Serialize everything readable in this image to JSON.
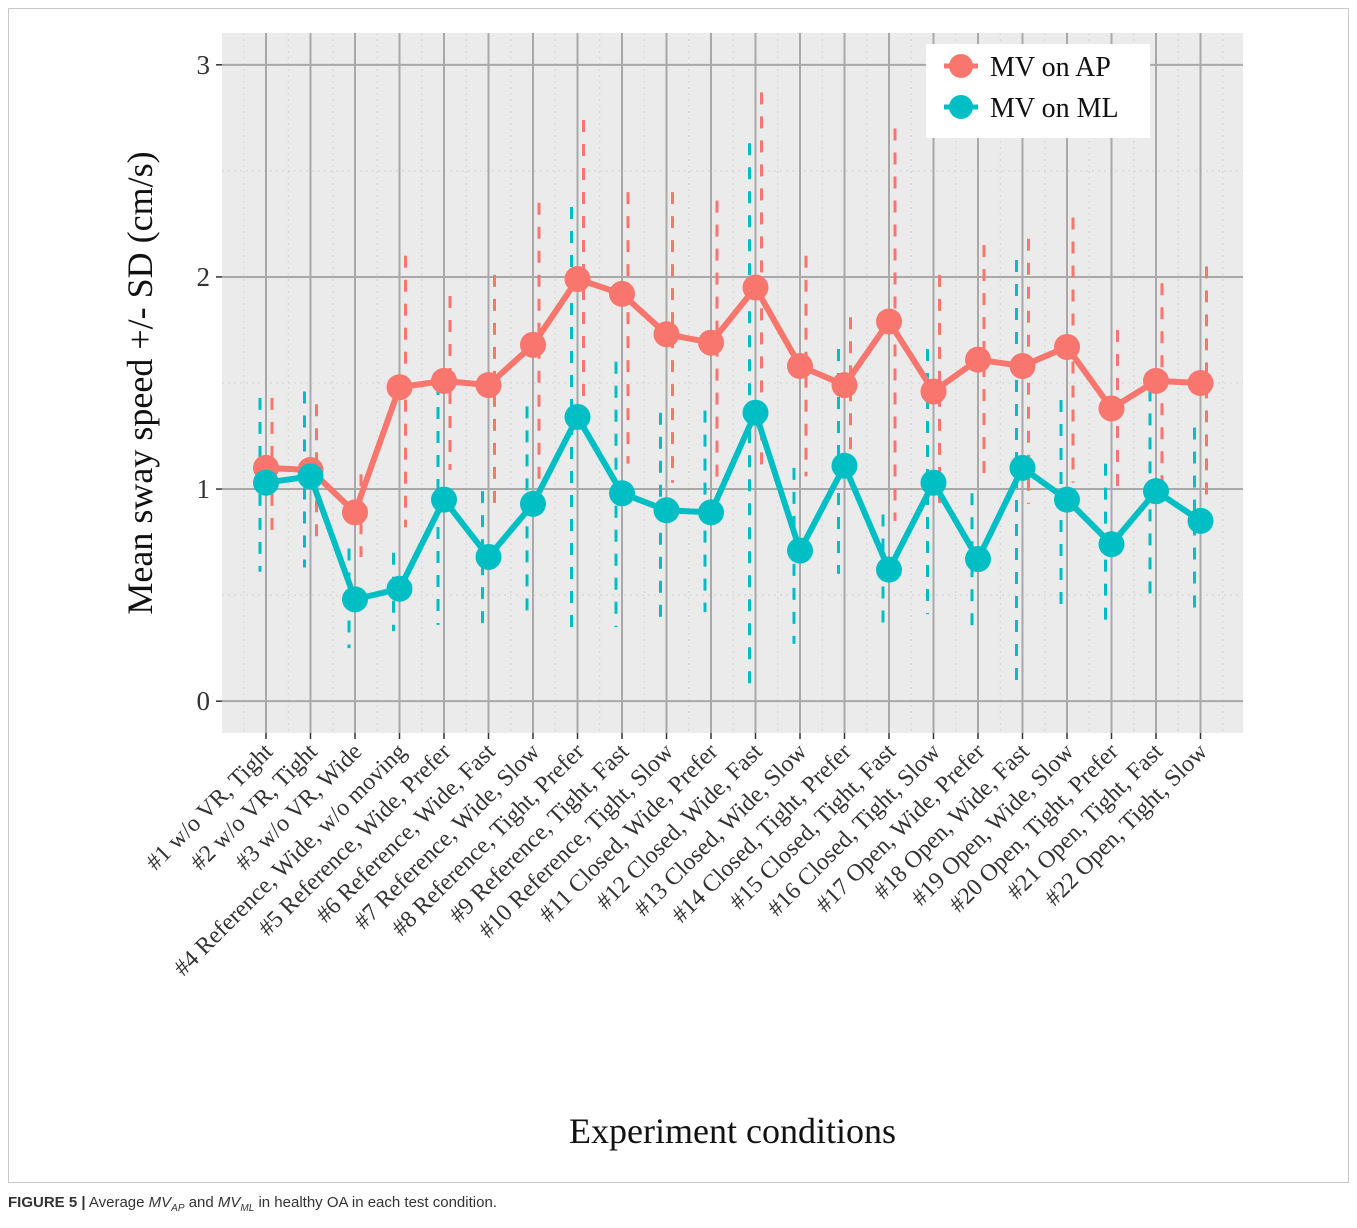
{
  "caption": {
    "label": "FIGURE 5 |",
    "text_before": "Average",
    "mv1": "MV",
    "sub1": "AP",
    "and_word": "and",
    "mv2": "MV",
    "sub2": "ML",
    "text_after": "in healthy OA in each test condition."
  },
  "colors": {
    "panel_bg": "#ebebeb",
    "grid_major": "#a9a9a9",
    "grid_minor": "#d3d3d3",
    "ap": "#f8766d",
    "ml": "#00bfc4"
  },
  "chart_data": {
    "type": "line",
    "xlabel": "Experiment conditions",
    "ylabel": "Mean sway speed +/- SD (cm/s)",
    "ylim": [
      -0.15,
      3.15
    ],
    "y_ticks": [
      0,
      1,
      2,
      3
    ],
    "y_tick_labels": [
      "0",
      "1",
      "2",
      "3"
    ],
    "grid": true,
    "legend_position": "top-right",
    "categories": [
      "#1 w/o VR, Tight",
      "#2 w/o VR, Tight",
      "#3 w/o VR, Wide",
      "#4 Reference, Wide, w/o moving",
      "#5 Reference, Wide, Prefer",
      "#6 Reference, Wide, Fast",
      "#7 Reference, Wide, Slow",
      "#8 Reference, Tight, Prefer",
      "#9 Reference, Tight, Fast",
      "#10 Reference, Tight, Slow",
      "#11 Closed, Wide, Prefer",
      "#12 Closed, Wide, Fast",
      "#13 Closed, Wide, Slow",
      "#14 Closed, Tight, Prefer",
      "#15 Closed, Tight, Fast",
      "#16 Closed, Tight, Slow",
      "#17 Open, Wide, Prefer",
      "#18 Open, Wide, Fast",
      "#19 Open, Wide, Slow",
      "#20 Open, Tight, Prefer",
      "#21 Open, Tight, Fast",
      "#22 Open, Tight, Slow"
    ],
    "series": [
      {
        "name": "MV on AP",
        "color": "#f8766d",
        "values": [
          1.1,
          1.09,
          0.89,
          1.48,
          1.51,
          1.49,
          1.68,
          1.99,
          1.92,
          1.73,
          1.69,
          1.95,
          1.58,
          1.49,
          1.79,
          1.46,
          1.61,
          1.58,
          1.67,
          1.38,
          1.51,
          1.5
        ],
        "sd_low": [
          0.77,
          0.73,
          0.68,
          0.82,
          1.09,
          0.93,
          0.96,
          1.27,
          1.12,
          1.03,
          1.04,
          1.06,
          1.06,
          1.15,
          0.85,
          0.91,
          1.06,
          0.93,
          1.03,
          1.01,
          1.04,
          0.93
        ],
        "sd_high": [
          1.43,
          1.4,
          1.07,
          2.1,
          1.91,
          2.01,
          2.35,
          2.74,
          2.4,
          2.4,
          2.36,
          2.87,
          2.1,
          1.81,
          2.7,
          2.01,
          2.15,
          2.18,
          2.28,
          1.75,
          1.97,
          2.05
        ]
      },
      {
        "name": "MV on ML",
        "color": "#00bfc4",
        "values": [
          1.03,
          1.06,
          0.48,
          0.53,
          0.95,
          0.68,
          0.93,
          1.34,
          0.98,
          0.9,
          0.89,
          1.36,
          0.71,
          1.11,
          0.62,
          1.03,
          0.67,
          1.1,
          0.95,
          0.74,
          0.99,
          0.85
        ],
        "sd_low": [
          0.61,
          0.63,
          0.25,
          0.33,
          0.36,
          0.35,
          0.41,
          0.33,
          0.35,
          0.38,
          0.42,
          0.08,
          0.27,
          0.6,
          0.35,
          0.41,
          0.34,
          0.1,
          0.44,
          0.34,
          0.48,
          0.39
        ],
        "sd_high": [
          1.43,
          1.46,
          0.72,
          0.7,
          1.5,
          0.99,
          1.39,
          2.33,
          1.6,
          1.36,
          1.37,
          2.63,
          1.1,
          1.66,
          0.88,
          1.66,
          0.98,
          2.08,
          1.42,
          1.12,
          1.47,
          1.29
        ]
      }
    ]
  }
}
